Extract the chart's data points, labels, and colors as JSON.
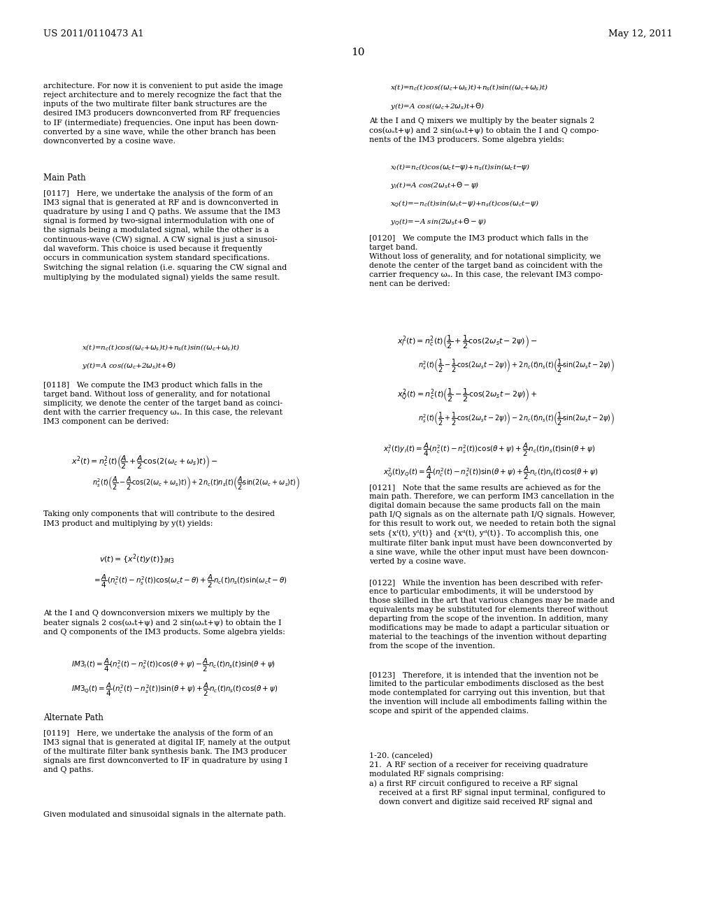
{
  "page_num": "10",
  "header_left": "US 2011/0110473 A1",
  "header_right": "May 12, 2011",
  "bg": "#ffffff",
  "tc": "#000000"
}
